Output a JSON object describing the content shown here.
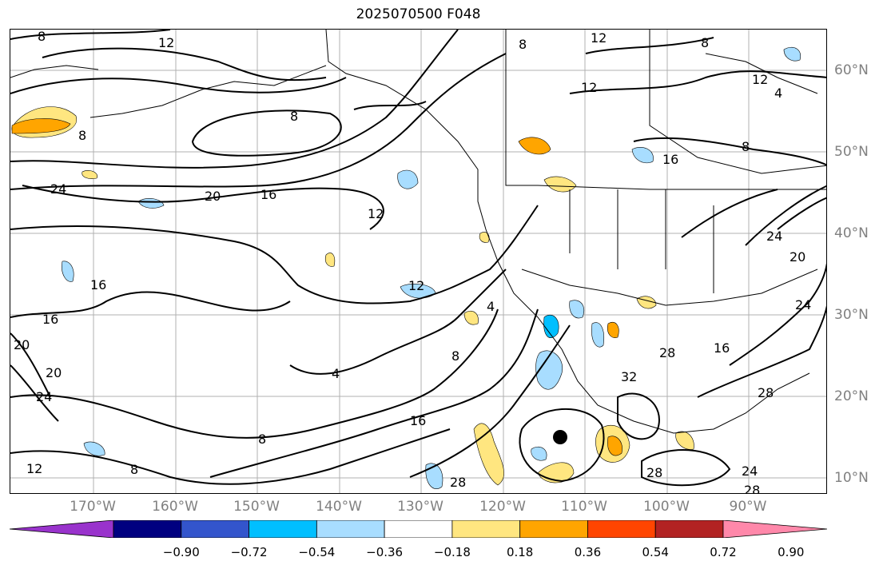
{
  "title": "2025070500 F048",
  "lon_labels": [
    "170°W",
    "160°W",
    "150°W",
    "140°W",
    "130°W",
    "120°W",
    "110°W",
    "100°W",
    "90°W"
  ],
  "lat_labels": [
    "60°N",
    "50°N",
    "40°N",
    "30°N",
    "20°N",
    "10°N"
  ],
  "colorbar": {
    "colors": [
      "#9933cc",
      "#000080",
      "#3355cc",
      "#00bfff",
      "#a8ddff",
      "#ffffff",
      "#ffe680",
      "#ffa500",
      "#ff4500",
      "#b22222",
      "#ff88aa"
    ],
    "tick_labels": [
      "−0.90",
      "−0.72",
      "−0.54",
      "−0.36",
      "−0.18",
      "0.18",
      "0.36",
      "0.54",
      "0.72",
      "0.90"
    ]
  },
  "contour_labels": [
    "8",
    "12",
    "8",
    "12",
    "8",
    "12",
    "8",
    "8",
    "8",
    "16",
    "24",
    "20",
    "16",
    "12",
    "12",
    "16",
    "16",
    "20",
    "20",
    "24",
    "12",
    "4",
    "8",
    "4",
    "16",
    "32",
    "28",
    "28",
    "28",
    "16",
    "24",
    "20",
    "24",
    "28",
    "24",
    "28",
    "8",
    "12",
    "4",
    "8"
  ],
  "marker": "storm-center-dot"
}
